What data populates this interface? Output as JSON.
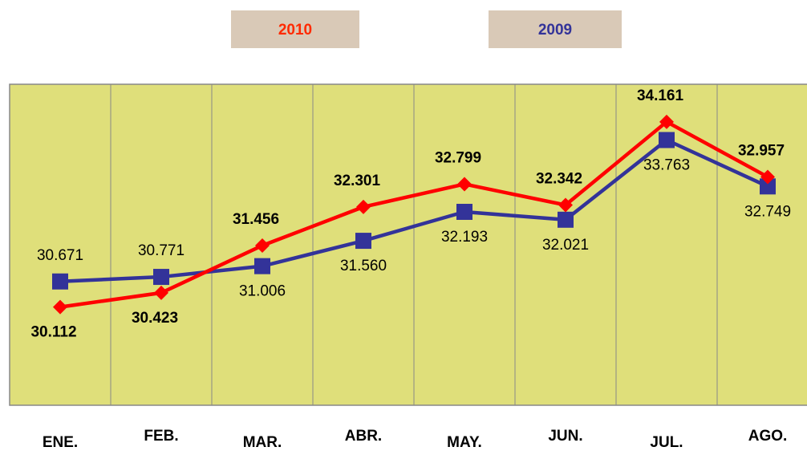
{
  "chart_data": {
    "type": "line",
    "categories": [
      "ENE.",
      "FEB.",
      "MAR.",
      "ABR.",
      "MAY.",
      "JUN.",
      "JUL.",
      "AGO."
    ],
    "series": [
      {
        "name": "2010",
        "color": "#ff0000",
        "values": [
          30.112,
          30.423,
          31.456,
          32.301,
          32.799,
          32.342,
          34.161,
          32.957
        ]
      },
      {
        "name": "2009",
        "color": "#333399",
        "values": [
          30.671,
          30.771,
          31.006,
          31.56,
          32.193,
          32.021,
          33.763,
          32.749
        ]
      }
    ],
    "value_labels": [
      null,
      [
        "30.671",
        "30.771",
        "31.006",
        "31.560",
        "32.193",
        "32.021",
        "33.763",
        "32.749"
      ]
    ],
    "ylim": [
      28,
      35
    ]
  }
}
